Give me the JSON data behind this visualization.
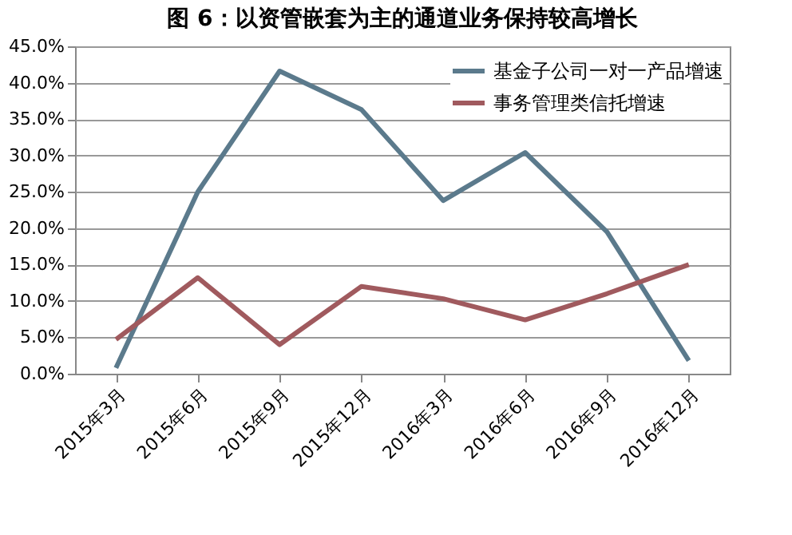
{
  "chart_data": {
    "type": "line",
    "title": "图 6：以资管嵌套为主的通道业务保持较高增长",
    "categories": [
      "2015年3月",
      "2015年6月",
      "2015年9月",
      "2015年12月",
      "2016年3月",
      "2016年6月",
      "2016年9月",
      "2016年12月"
    ],
    "series": [
      {
        "name": "基金子公司一对一产品增速",
        "color": "#5b7a8c",
        "values": [
          0.8,
          25.0,
          41.6,
          36.3,
          23.8,
          30.4,
          19.5,
          1.8
        ]
      },
      {
        "name": "事务管理类信托增速",
        "color": "#a05a5e",
        "values": [
          4.7,
          13.2,
          4.0,
          12.0,
          10.3,
          7.4,
          11.0,
          15.0
        ]
      }
    ],
    "ylim": [
      0,
      45
    ],
    "yticks": [
      {
        "value": 0,
        "label": "0.0%"
      },
      {
        "value": 5,
        "label": "5.0%"
      },
      {
        "value": 10,
        "label": "10.0%"
      },
      {
        "value": 15,
        "label": "15.0%"
      },
      {
        "value": 20,
        "label": "20.0%"
      },
      {
        "value": 25,
        "label": "25.0%"
      },
      {
        "value": 30,
        "label": "30.0%"
      },
      {
        "value": 35,
        "label": "35.0%"
      },
      {
        "value": 40,
        "label": "40.0%"
      },
      {
        "value": 45,
        "label": "45.0%"
      }
    ],
    "grid": "y",
    "legend": "top right",
    "marker": "none",
    "line_style": "solid"
  }
}
